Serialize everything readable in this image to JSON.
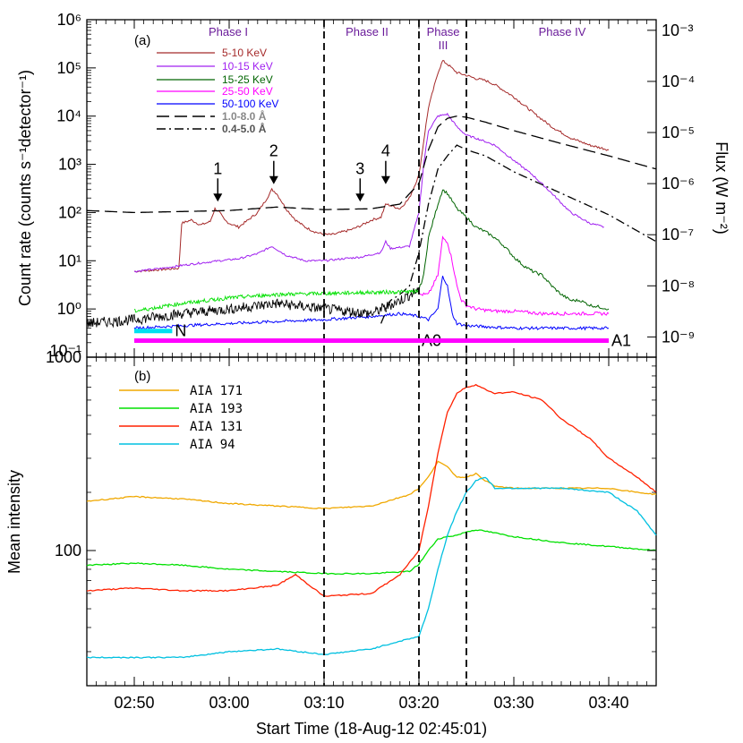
{
  "figure": {
    "xlabel": "Start Time (18-Aug-12 02:45:01)",
    "x_ticks": [
      {
        "t": 5,
        "label": "02:50"
      },
      {
        "t": 15,
        "label": "03:00"
      },
      {
        "t": 25,
        "label": "03:10"
      },
      {
        "t": 35,
        "label": "03:20"
      },
      {
        "t": 45,
        "label": "03:30"
      },
      {
        "t": 55,
        "label": "03:40"
      }
    ],
    "xlim": [
      0,
      60
    ],
    "phase_lines_min": [
      25,
      35,
      40
    ],
    "colors": {
      "c5_10": "#a52a2a",
      "c10_15": "#a020f0",
      "c15_25": "#006400",
      "c25_50": "#ff00ff",
      "c50_100": "#0000ff",
      "black": "#000000",
      "noise_green": "#00e000",
      "magenta_bar": "#ff00ff",
      "cyan_bar": "#00e0f0",
      "aia171": "#f0a800",
      "aia193": "#00e000",
      "aia131": "#ff2000",
      "aia94": "#00c0e0"
    }
  },
  "chart_data": [
    {
      "type": "line",
      "panel": "(a)",
      "title": "(a)",
      "ylabel_left": "Count rate (counts s⁻¹detector⁻¹)",
      "ylabel_right": "Flux (W m⁻²)",
      "yscale": "log",
      "ylim": [
        0.1,
        1000000
      ],
      "y_ticks_left": [
        "10⁻¹",
        "10⁰",
        "10¹",
        "10²",
        "10³",
        "10⁴",
        "10⁵",
        "10⁶"
      ],
      "ylim_right": [
        1e-09,
        0.001
      ],
      "y_ticks_right": [
        "10⁻⁹",
        "10⁻⁸",
        "10⁻⁷",
        "10⁻⁶",
        "10⁻⁵",
        "10⁻⁴",
        "10⁻³"
      ],
      "phases": [
        "Phase I",
        "Phase II",
        "Phase",
        "III",
        "Phase IV"
      ],
      "peak_labels": [
        {
          "label": "1",
          "t": 13.8,
          "y": 130
        },
        {
          "label": "2",
          "t": 19.7,
          "y": 300
        },
        {
          "label": "3",
          "t": 28.8,
          "y": 130
        },
        {
          "label": "4",
          "t": 31.5,
          "y": 300
        }
      ],
      "bars": [
        {
          "label": "N",
          "t_start": 5,
          "t_end": 9,
          "y": 0.35,
          "color": "#00e0f0"
        },
        {
          "label": "A0",
          "t_start": 5,
          "t_end": 35,
          "y": 0.22,
          "color": "#ff00ff"
        },
        {
          "label": "A1",
          "t_start": 35,
          "t_end": 55,
          "y": 0.22,
          "color": "#ff00ff"
        }
      ],
      "series": [
        {
          "name": "5-10 KeV",
          "color": "#a52a2a",
          "dash": "",
          "x": [
            5,
            9.7,
            10,
            11,
            12,
            13,
            13.5,
            14,
            14.5,
            15,
            16,
            17,
            18,
            19,
            19.5,
            20,
            21,
            22,
            23,
            24,
            25,
            26,
            27,
            28,
            29,
            30,
            31,
            31.5,
            32,
            33,
            34,
            35,
            35.5,
            36,
            37,
            37.5,
            38,
            39,
            40,
            41,
            42,
            43,
            45,
            47,
            49,
            51,
            53,
            55
          ],
          "values": [
            6,
            7,
            60,
            70,
            55,
            65,
            120,
            100,
            70,
            60,
            50,
            70,
            100,
            200,
            300,
            250,
            120,
            70,
            50,
            40,
            35,
            35,
            40,
            45,
            55,
            70,
            80,
            150,
            140,
            120,
            200,
            600,
            3000,
            15000,
            80000,
            140000,
            120000,
            80000,
            70000,
            60000,
            55000,
            45000,
            25000,
            12000,
            6000,
            3500,
            2500,
            2000
          ]
        },
        {
          "name": "10-15 KeV",
          "color": "#a020f0",
          "dash": "",
          "x": [
            5,
            8,
            10,
            12,
            14,
            16,
            18,
            19.5,
            21,
            23,
            25,
            27,
            29,
            31,
            31.5,
            32,
            34,
            35,
            35.5,
            36,
            37,
            38,
            39,
            40,
            41,
            43,
            45,
            47,
            49,
            51,
            53,
            54.5
          ],
          "values": [
            6,
            7,
            8,
            9,
            10,
            11,
            14,
            20,
            13,
            10,
            10,
            11,
            12,
            15,
            25,
            18,
            20,
            100,
            1000,
            5000,
            10000,
            11000,
            6000,
            4000,
            3500,
            2500,
            1200,
            600,
            250,
            100,
            60,
            50
          ]
        },
        {
          "name": "15-25 KeV",
          "color": "#006400",
          "dash": "",
          "x": [
            35,
            35.5,
            36,
            37,
            37.5,
            38,
            39,
            40,
            41,
            42,
            43,
            44,
            45,
            46,
            47,
            48,
            49,
            50,
            51,
            52,
            53,
            54,
            55
          ],
          "values": [
            2.5,
            5,
            30,
            150,
            300,
            250,
            120,
            80,
            50,
            40,
            30,
            20,
            12,
            8,
            6,
            5,
            3,
            2,
            1.5,
            1.5,
            1.2,
            1.1,
            1.0
          ]
        },
        {
          "name": "25-50 KeV",
          "color": "#ff00ff",
          "dash": "",
          "x": [
            35,
            36,
            37,
            37.5,
            38,
            38.5,
            39,
            39.5,
            40,
            41,
            43,
            45,
            48,
            51,
            55
          ],
          "values": [
            2,
            2,
            5,
            30,
            25,
            10,
            3,
            1.5,
            1.2,
            1.0,
            0.9,
            0.9,
            0.8,
            0.8,
            0.8
          ]
        },
        {
          "name": "50-100 KeV",
          "color": "#0000ff",
          "dash": "",
          "x": [
            5,
            10,
            15,
            20,
            25,
            30,
            33,
            35,
            36,
            37,
            37.5,
            38,
            38.5,
            39,
            40,
            45,
            50,
            55
          ],
          "values": [
            0.4,
            0.45,
            0.5,
            0.55,
            0.6,
            0.7,
            0.8,
            0.7,
            0.6,
            1.0,
            5,
            3,
            0.8,
            0.5,
            0.45,
            0.4,
            0.4,
            0.4
          ]
        },
        {
          "name": "1.0-8.0 Å",
          "color": "#000000",
          "dash": "14,6",
          "x": [
            0,
            5,
            10,
            15,
            20,
            25,
            30,
            33,
            35,
            36,
            37,
            38,
            39,
            40,
            42,
            45,
            50,
            55,
            60
          ],
          "values": [
            110,
            100,
            105,
            110,
            130,
            115,
            120,
            150,
            400,
            2000,
            6000,
            9000,
            10000,
            9500,
            7500,
            5000,
            2700,
            1500,
            800
          ]
        },
        {
          "name": "0.4-5.0 Å",
          "color": "#000000",
          "dash": "10,4,2,4",
          "x": [
            31,
            32,
            33,
            34,
            35,
            36,
            37,
            38,
            39,
            40,
            42,
            45,
            50,
            55,
            60
          ],
          "values": [
            0.5,
            1.5,
            2,
            3,
            15,
            150,
            800,
            1500,
            2500,
            2000,
            1500,
            700,
            250,
            90,
            25
          ]
        }
      ]
    },
    {
      "type": "line",
      "panel": "(b)",
      "title": "(b)",
      "xlabel": "Start Time (18-Aug-12 02:45:01)",
      "ylabel": "Mean intensity",
      "yscale": "log",
      "ylim": [
        20,
        1000
      ],
      "y_ticks": [
        "100",
        "1000"
      ],
      "series": [
        {
          "name": "AIA  171",
          "color": "#f0a800",
          "x": [
            0,
            5,
            10,
            15,
            20,
            25,
            30,
            34,
            35,
            36,
            37,
            38,
            39,
            40,
            41,
            42,
            43,
            45,
            50,
            55,
            58,
            60
          ],
          "values": [
            180,
            190,
            185,
            175,
            170,
            165,
            170,
            195,
            210,
            240,
            290,
            270,
            240,
            240,
            250,
            230,
            215,
            210,
            210,
            210,
            200,
            195
          ]
        },
        {
          "name": "AIA  193",
          "color": "#00e000",
          "x": [
            0,
            5,
            10,
            15,
            20,
            25,
            30,
            34,
            35,
            36,
            37,
            38,
            39,
            40,
            41,
            42,
            45,
            50,
            55,
            60
          ],
          "values": [
            84,
            86,
            84,
            80,
            78,
            76,
            76,
            78,
            85,
            100,
            115,
            118,
            120,
            125,
            128,
            126,
            118,
            110,
            105,
            100
          ]
        },
        {
          "name": "AIA  131",
          "color": "#ff2000",
          "x": [
            0,
            5,
            10,
            15,
            20,
            22,
            25,
            30,
            33,
            35,
            36,
            37,
            38,
            39,
            40,
            41,
            42,
            43,
            45,
            48,
            50,
            53,
            55,
            58,
            60
          ],
          "values": [
            62,
            64,
            62,
            62,
            66,
            75,
            58,
            60,
            75,
            100,
            170,
            320,
            520,
            650,
            700,
            720,
            680,
            650,
            660,
            600,
            480,
            380,
            300,
            240,
            200
          ]
        },
        {
          "name": "AIA  94",
          "color": "#00c0e0",
          "x": [
            0,
            5,
            10,
            15,
            20,
            25,
            30,
            33,
            35,
            36,
            37,
            38,
            39,
            40,
            41,
            42,
            43,
            45,
            50,
            55,
            58,
            60
          ],
          "values": [
            28,
            28,
            28,
            30,
            31,
            29,
            31,
            34,
            36,
            50,
            80,
            120,
            160,
            200,
            230,
            240,
            210,
            210,
            210,
            200,
            160,
            120
          ]
        }
      ]
    }
  ]
}
